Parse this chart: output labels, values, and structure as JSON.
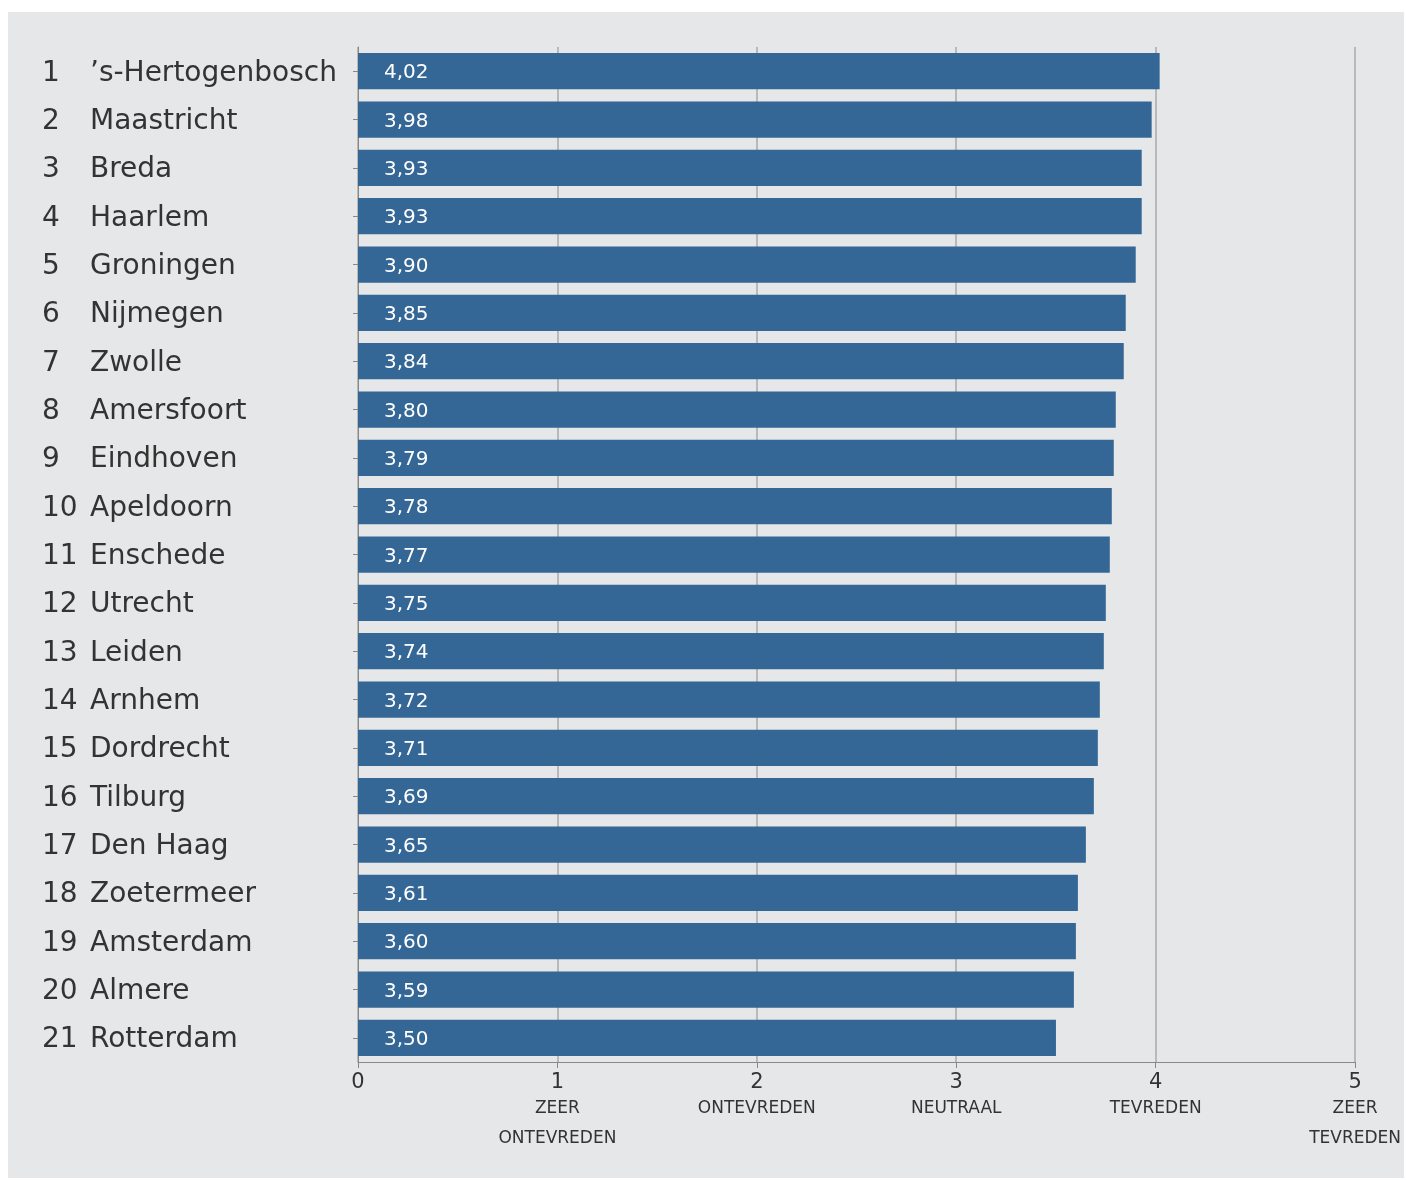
{
  "chart_data": {
    "type": "bar",
    "orientation": "horizontal",
    "categories": [
      "1 ’s-Hertogenbosch",
      "2 Maastricht",
      "3 Breda",
      "4 Haarlem",
      "5 Groningen",
      "6 Nijmegen",
      "7 Zwolle",
      "8 Amersfoort",
      "9 Eindhoven",
      "10 Apeldoorn",
      "11 Enschede",
      "12 Utrecht",
      "13 Leiden",
      "14 Arnhem",
      "15 Dordrecht",
      "16 Tilburg",
      "17 Den Haag",
      "18 Zoetermeer",
      "19 Amsterdam",
      "20 Almere",
      "21 Rotterdam"
    ],
    "values": [
      4.02,
      3.98,
      3.93,
      3.93,
      3.9,
      3.85,
      3.84,
      3.8,
      3.79,
      3.78,
      3.77,
      3.75,
      3.74,
      3.72,
      3.71,
      3.69,
      3.65,
      3.61,
      3.6,
      3.59,
      3.5
    ],
    "value_labels": [
      "4,02",
      "3,98",
      "3,93",
      "3,93",
      "3,90",
      "3,85",
      "3,84",
      "3,80",
      "3,79",
      "3,78",
      "3,77",
      "3,75",
      "3,74",
      "3,72",
      "3,71",
      "3,69",
      "3,65",
      "3,61",
      "3,60",
      "3,59",
      "3,50"
    ],
    "color": "#346795",
    "xlim": [
      0,
      5
    ],
    "xticks": [
      0,
      {
        "value": 1,
        "label": "1\nZEER\nONTEVREDEN"
      },
      {
        "value": 2,
        "label": "2\nONTEVREDEN"
      },
      {
        "value": 3,
        "label": "3\nNEUTRAAL"
      },
      {
        "value": 4,
        "label": "4\nTEVREDEN"
      },
      {
        "value": 5,
        "label": "5\nZEER\nTEVREDEN"
      }
    ],
    "grid": "x"
  }
}
